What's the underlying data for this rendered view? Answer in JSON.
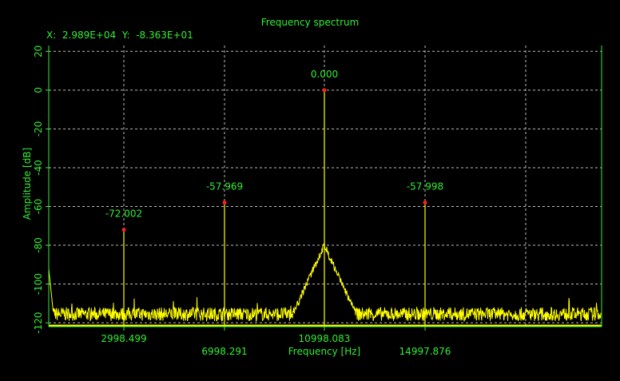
{
  "chart_data": {
    "type": "line",
    "title": "Frequency spectrum",
    "readout": "X:  2.989E+04  Y:  -8.363E+01",
    "xlabel": "Frequency [Hz]",
    "ylabel": "Amplitude [dB]",
    "xlim": [
      0,
      27800
    ],
    "ylim": [
      -122,
      23
    ],
    "yticks": [
      20,
      0,
      -20,
      -40,
      -60,
      -80,
      -100,
      -120
    ],
    "xticks_row1": [
      {
        "value": 2998.499,
        "label": "2998.499"
      },
      {
        "value": 10998.083,
        "label": "10998.083"
      }
    ],
    "xticks_row2": [
      {
        "value": 6998.291,
        "label": "6998.291"
      },
      {
        "value": 14997.876,
        "label": "14997.876"
      }
    ],
    "grid": true,
    "noise_floor_db": -117,
    "series": [
      {
        "color": "#ffff00",
        "peaks": [
          {
            "x": 3900,
            "y": -72.002,
            "label": "-72.002"
          },
          {
            "x": 8900,
            "y": -57.969,
            "label": "-57.969"
          },
          {
            "x": 13900,
            "y": 0.0,
            "label": "0.000"
          },
          {
            "x": 18900,
            "y": -57.998,
            "label": "-57.998"
          }
        ]
      }
    ],
    "colors": {
      "background": "#000000",
      "axis": "#33ee33",
      "grid": "#bdbdbd",
      "trace": "#ffff00",
      "marker": "#ff2020"
    }
  }
}
